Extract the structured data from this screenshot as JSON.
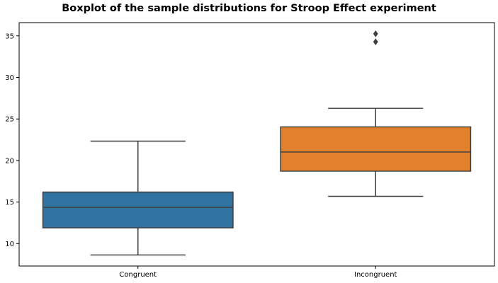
{
  "chart_data": {
    "type": "box",
    "title": "Boxplot of the sample distributions for Stroop Effect experiment",
    "xlabel": "",
    "ylabel": "",
    "ylim": [
      7.3,
      36.6
    ],
    "yticks": [
      10,
      15,
      20,
      25,
      30,
      35
    ],
    "grid": false,
    "categories": [
      "Congruent",
      "Incongruent"
    ],
    "boxes": [
      {
        "category": "Congruent",
        "whisker_low": 8.63,
        "q1": 11.9,
        "median": 14.36,
        "q3": 16.2,
        "whisker_high": 22.33,
        "outliers": [],
        "color": "#3274a1"
      },
      {
        "category": "Incongruent",
        "whisker_low": 15.69,
        "q1": 18.72,
        "median": 21.02,
        "q3": 24.05,
        "whisker_high": 26.28,
        "outliers": [
          34.29,
          35.26
        ],
        "color": "#e1812c"
      }
    ],
    "line_color": "#3f3f3f"
  }
}
